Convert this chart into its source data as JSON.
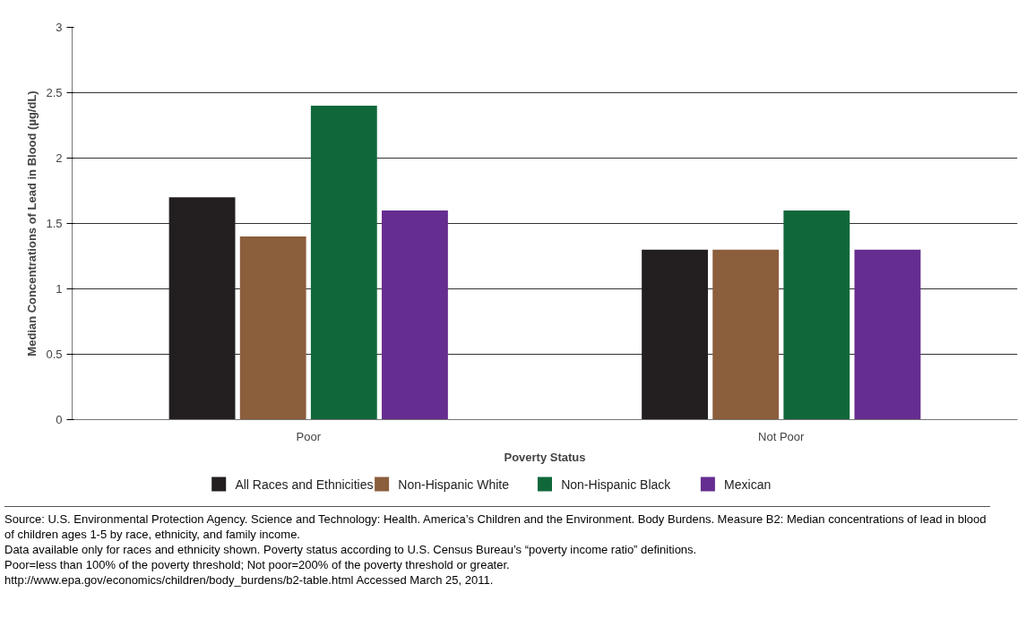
{
  "chart_data": {
    "type": "bar",
    "xlabel": "Poverty Status",
    "ylabel": "Median Concentrations of Lead in Blood (µg/dL)",
    "categories": [
      "Poor",
      "Not Poor"
    ],
    "series": [
      {
        "name": "All Races and Ethnicities",
        "color": "#231f20",
        "values": [
          1.7,
          1.3
        ]
      },
      {
        "name": "Non-Hispanic White",
        "color": "#8b5e3c",
        "values": [
          1.4,
          1.3
        ]
      },
      {
        "name": "Non-Hispanic Black",
        "color": "#10683a",
        "values": [
          2.4,
          1.6
        ]
      },
      {
        "name": "Mexican",
        "color": "#652d90",
        "values": [
          1.6,
          1.3
        ]
      }
    ],
    "ylim": [
      0,
      3
    ],
    "yticks": [
      0,
      0.5,
      1,
      1.5,
      2,
      2.5,
      3
    ],
    "grid": "y",
    "legend": "bottom",
    "annotations": [
      "Source: U.S. Environmental Protection Agency. Science and Technology: Health. America’s Children and the Environment. Body Burdens. Measure B2: Median concentrations of lead in blood of children ages 1-5 by race, ethnicity, and family income.",
      "Data available only for races and ethnicity shown. Poverty status according to U.S. Census Bureau’s “poverty income ratio” definitions.",
      "Poor=less than 100% of the poverty threshold; Not poor=200% of the poverty threshold or greater.",
      "http://www.epa.gov/economics/children/body_burdens/b2-table.html  Accessed March 25, 2011."
    ]
  }
}
